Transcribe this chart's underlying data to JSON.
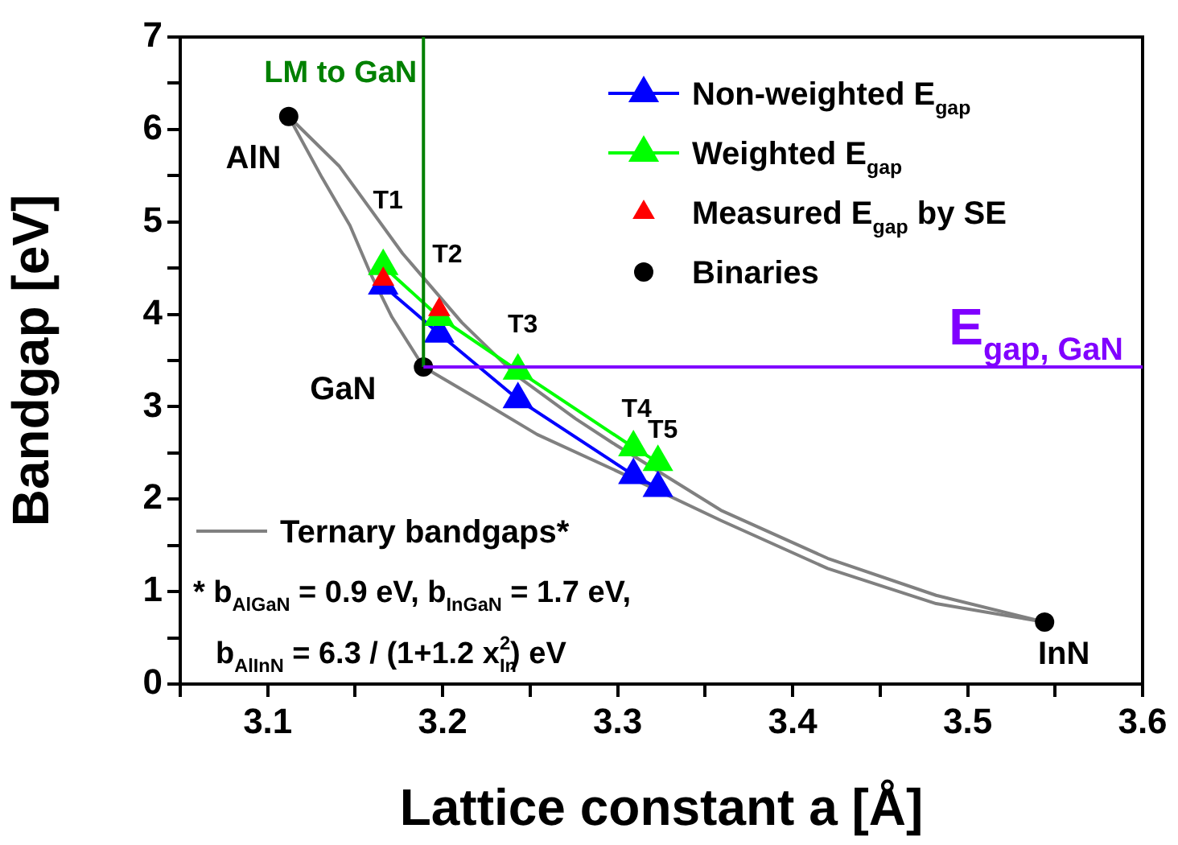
{
  "chart_data": {
    "type": "scatter",
    "xlabel": "Lattice constant a [Å]",
    "ylabel": "Bandgap [eV]",
    "xlim": [
      3.05,
      3.6
    ],
    "xticks": [
      {
        "value": 3.05,
        "label": null
      },
      3.1,
      {
        "value": 3.15,
        "label": null
      },
      3.2,
      {
        "value": 3.25,
        "label": null
      },
      3.3,
      {
        "value": 3.35,
        "label": null
      },
      3.4,
      {
        "value": 3.45,
        "label": null
      },
      3.5,
      {
        "value": 3.55,
        "label": null
      },
      3.6
    ],
    "ylim": [
      0,
      7
    ],
    "yticks": [
      0,
      {
        "value": 0.5,
        "label": null
      },
      1,
      {
        "value": 1.5,
        "label": null
      },
      2,
      {
        "value": 2.5,
        "label": null
      },
      3,
      {
        "value": 3.5,
        "label": null
      },
      4,
      {
        "value": 4.5,
        "label": null
      },
      5,
      {
        "value": 5.5,
        "label": null
      },
      6,
      {
        "value": 6.5,
        "label": null
      },
      7
    ],
    "grid": false,
    "legend": "top",
    "series": [
      {
        "type": "line",
        "name": "Ternary bandgaps*",
        "color": "#808080",
        "marker": "none",
        "x": [
          3.112,
          3.131,
          3.147,
          3.159,
          3.171,
          3.189
        ],
        "values": [
          6.14,
          5.48,
          4.96,
          4.43,
          3.97,
          3.43
        ]
      },
      {
        "type": "line",
        "color": "#808080",
        "marker": "none",
        "x": [
          3.189,
          3.224,
          3.254,
          3.3,
          3.359,
          3.42,
          3.482,
          3.544
        ],
        "values": [
          3.43,
          3.04,
          2.7,
          2.3,
          1.77,
          1.25,
          0.87,
          0.67
        ]
      },
      {
        "type": "line",
        "color": "#808080",
        "marker": "none",
        "x": [
          3.112,
          3.141,
          3.177,
          3.211,
          3.242,
          3.276,
          3.297,
          3.359,
          3.42,
          3.482,
          3.544
        ],
        "values": [
          6.14,
          5.6,
          4.66,
          3.91,
          3.34,
          2.87,
          2.61,
          1.88,
          1.36,
          0.96,
          0.67
        ]
      },
      {
        "type": "line",
        "name": "Non-weighted E$_{gap}$",
        "color": "#0000ff",
        "marker": "triangle",
        "x": [
          3.166,
          3.198,
          3.243,
          3.309,
          3.323
        ],
        "values": [
          4.31,
          3.79,
          3.08,
          2.26,
          2.12
        ]
      },
      {
        "type": "line",
        "name": "Weighted E$_{gap}$",
        "color": "#00ff00",
        "marker": "triangle",
        "x": [
          3.166,
          3.198,
          3.243,
          3.309,
          3.323
        ],
        "values": [
          4.52,
          3.97,
          3.39,
          2.56,
          2.4
        ]
      },
      {
        "type": "scatter",
        "name": "Measured E$_{gap}$ by SE",
        "color": "#ff0000",
        "marker": "triangle",
        "x": [
          3.166,
          3.198
        ],
        "values": [
          4.38,
          4.05
        ]
      },
      {
        "type": "scatter",
        "name": "Binaries",
        "color": "#000000",
        "marker": "circle",
        "x": [
          3.112,
          3.189,
          3.544
        ],
        "values": [
          6.14,
          3.43,
          0.67
        ]
      }
    ],
    "ref_lines": [
      {
        "axis": "x",
        "value": 3.189,
        "label": "LM to GaN",
        "color": "#008000"
      },
      {
        "axis": "y",
        "value": 3.43,
        "label": "E$_{gap, GaN}$",
        "color": "#8000ff"
      }
    ],
    "annotations": [
      {
        "text": "AlN",
        "x": 3.112,
        "y": 6.14
      },
      {
        "text": "GaN",
        "x": 3.189,
        "y": 3.43
      },
      {
        "text": "InN",
        "x": 3.544,
        "y": 0.67
      },
      {
        "text": "T1",
        "x": 3.166,
        "y": 4.52
      },
      {
        "text": "T2",
        "x": 3.198,
        "y": 3.97
      },
      {
        "text": "T3",
        "x": 3.243,
        "y": 3.39
      },
      {
        "text": "T4",
        "x": 3.309,
        "y": 2.56
      },
      {
        "text": "T5",
        "x": 3.323,
        "y": 2.4
      },
      "* b$_{AlGaN}$ = 0.9 eV, b$_{InGaN}$ = 1.7 eV,",
      "b$_{AlInN}$ = 6.3 / (1+1.2 x$_{In}$$^{2}$) eV"
    ]
  }
}
